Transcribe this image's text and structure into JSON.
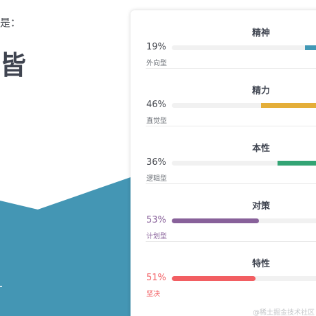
{
  "left": {
    "label_fragment": "是：",
    "big_text_fragment": "皆"
  },
  "colors": {
    "band": "#4496b4",
    "teal": "#4198b5",
    "yellow": "#e4ae39",
    "green": "#33a474",
    "purple": "#88619a",
    "red": "#f25e62"
  },
  "traits": [
    {
      "title": "精神",
      "percent_label": "19%",
      "percent": 19,
      "type": "外向型",
      "color": "#4198b5",
      "align": "right",
      "type_color": "#6b6f76",
      "percent_color": "#44474e"
    },
    {
      "title": "精力",
      "percent_label": "46%",
      "percent": 46,
      "type": "直觉型",
      "color": "#e4ae39",
      "align": "right",
      "type_color": "#6b6f76",
      "percent_color": "#44474e"
    },
    {
      "title": "本性",
      "percent_label": "36%",
      "percent": 36,
      "type": "逻辑型",
      "color": "#33a474",
      "align": "right",
      "type_color": "#6b6f76",
      "percent_color": "#44474e"
    },
    {
      "title": "对策",
      "percent_label": "53%",
      "percent": 53,
      "type": "计划型",
      "color": "#88619a",
      "align": "left",
      "type_color": "#88619a",
      "percent_color": "#88619a"
    },
    {
      "title": "特性",
      "percent_label": "51%",
      "percent": 51,
      "type": "坚决",
      "color": "#f25e62",
      "align": "left",
      "type_color": "#f25e62",
      "percent_color": "#f25e62"
    }
  ],
  "watermark": "@稀土掘金技术社区"
}
